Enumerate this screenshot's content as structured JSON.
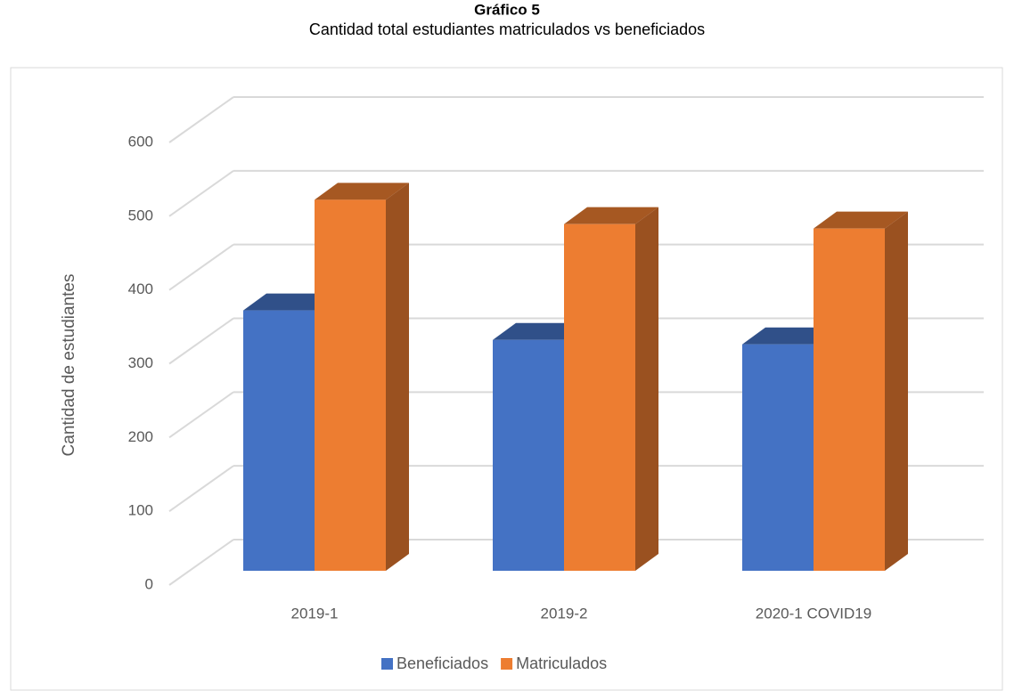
{
  "chart_data": {
    "type": "bar3d",
    "title": "Gráfico 5",
    "subtitle": "Cantidad total estudiantes matriculados vs beneficiados",
    "ylabel": "Cantidad de estudiantes",
    "categories": [
      "2019-1",
      "2019-2",
      "2020-1 COVID19"
    ],
    "series": [
      {
        "name": "Beneficiados",
        "color": "#4472c4",
        "values": [
          353,
          313,
          307
        ]
      },
      {
        "name": "Matriculados",
        "color": "#ed7d31",
        "values": [
          503,
          470,
          464
        ]
      }
    ],
    "ylim": [
      0,
      600
    ],
    "yticks": [
      0,
      100,
      200,
      300,
      400,
      500,
      600
    ],
    "grid": true,
    "legend": "bottom"
  }
}
